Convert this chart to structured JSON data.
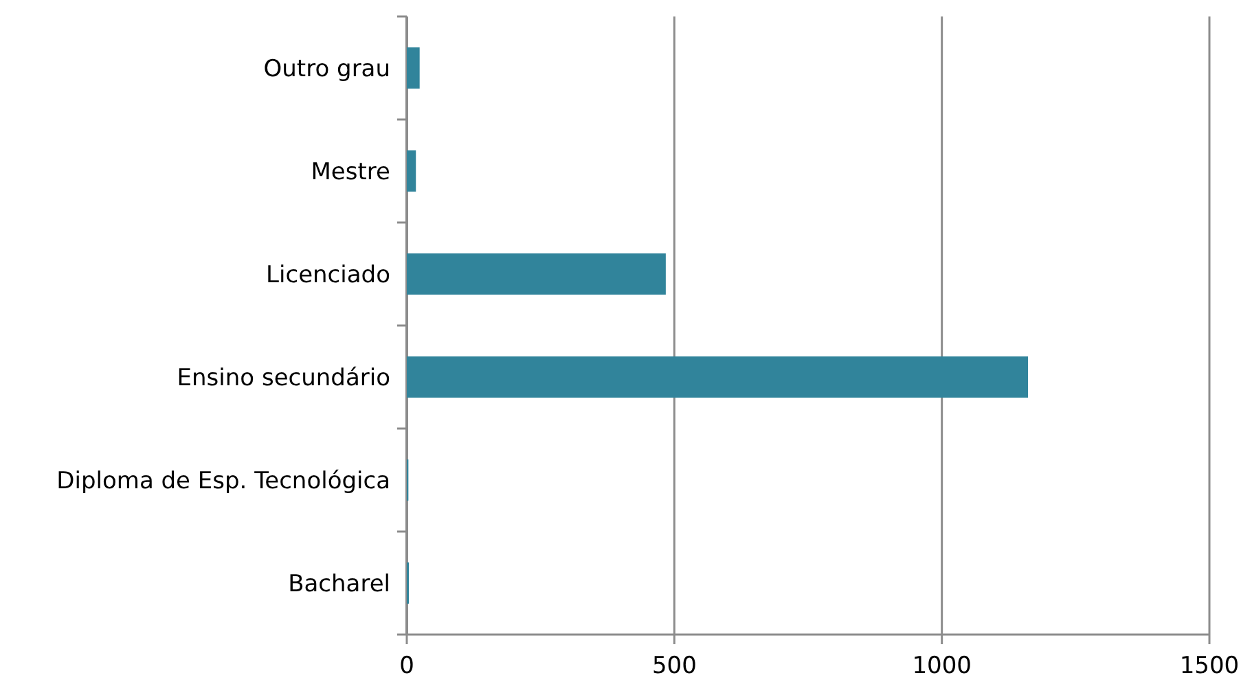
{
  "chart_data": {
    "type": "bar",
    "orientation": "horizontal",
    "categories": [
      "Outro grau",
      "Mestre",
      "Licenciado",
      "Ensino secundário",
      "Diploma de Esp. Tecnológica",
      "Bacharel"
    ],
    "values": [
      24,
      17,
      484,
      1161,
      3,
      4
    ],
    "color": "#31849b",
    "xlim": [
      0,
      1500
    ],
    "xticks": [
      0,
      500,
      1000,
      1500
    ],
    "grid": "x"
  }
}
